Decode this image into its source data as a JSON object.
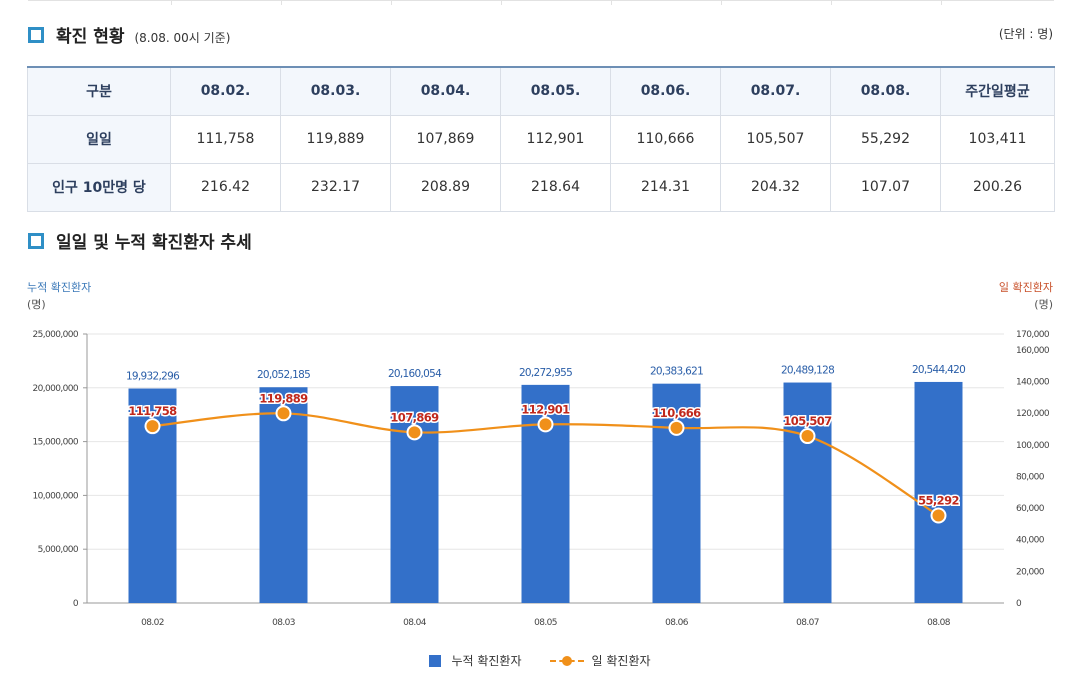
{
  "section1": {
    "title": "확진 현황",
    "note": "(8.08. 00시 기준)",
    "unit": "(단위 : 명)"
  },
  "table": {
    "headers": [
      "구분",
      "08.02.",
      "08.03.",
      "08.04.",
      "08.05.",
      "08.06.",
      "08.07.",
      "08.08.",
      "주간일평균"
    ],
    "rows": [
      {
        "label": "일일",
        "values": [
          "111,758",
          "119,889",
          "107,869",
          "112,901",
          "110,666",
          "105,507",
          "55,292",
          "103,411"
        ]
      },
      {
        "label": "인구 10만명 당",
        "values": [
          "216.42",
          "232.17",
          "208.89",
          "218.64",
          "214.31",
          "204.32",
          "107.07",
          "200.26"
        ]
      }
    ]
  },
  "section2": {
    "title": "일일 및 누적 확진환자 추세"
  },
  "colors": {
    "bar": "#3370c9",
    "line": "#f0901a",
    "bar_label": "#2a5ea8",
    "line_label": "#c0281c",
    "left_axis_title": "#3a78b8",
    "right_axis_title": "#c8502a"
  },
  "chart_data": {
    "type": "bar+line",
    "categories": [
      "08.02",
      "08.03",
      "08.04",
      "08.05",
      "08.06",
      "08.07",
      "08.08"
    ],
    "series": [
      {
        "name": "누적 확진환자",
        "type": "bar",
        "axis": "left",
        "values": [
          19932296,
          20052185,
          20160054,
          20272955,
          20383621,
          20489128,
          20544420
        ],
        "labels": [
          "19,932,296",
          "20,052,185",
          "20,160,054",
          "20,272,955",
          "20,383,621",
          "20,489,128",
          "20,544,420"
        ]
      },
      {
        "name": "일 확진환자",
        "type": "line",
        "axis": "right",
        "values": [
          111758,
          119889,
          107869,
          112901,
          110666,
          105507,
          55292
        ],
        "labels": [
          "111,758",
          "119,889",
          "107,869",
          "112,901",
          "110,666",
          "105,507",
          "55,292"
        ]
      }
    ],
    "left_axis": {
      "title": "누적 확진환자",
      "unit": "(명)",
      "ylim": [
        0,
        25000000
      ],
      "ticks": [
        0,
        5000000,
        10000000,
        15000000,
        20000000,
        25000000
      ],
      "tick_labels": [
        "0",
        "5,000,000",
        "10,000,000",
        "15,000,000",
        "20,000,000",
        "25,000,000"
      ]
    },
    "right_axis": {
      "title": "일 확진환자",
      "unit": "(명)",
      "ylim": [
        0,
        170000
      ],
      "ticks": [
        0,
        20000,
        40000,
        60000,
        80000,
        100000,
        120000,
        140000,
        160000,
        170000
      ],
      "tick_labels": [
        "0",
        "20,000",
        "40,000",
        "60,000",
        "80,000",
        "100,000",
        "120,000",
        "140,000",
        "160,000",
        "170,000"
      ]
    },
    "legend": [
      "누적 확진환자",
      "일 확진환자"
    ],
    "grid": true,
    "legend_position": "bottom-center"
  }
}
